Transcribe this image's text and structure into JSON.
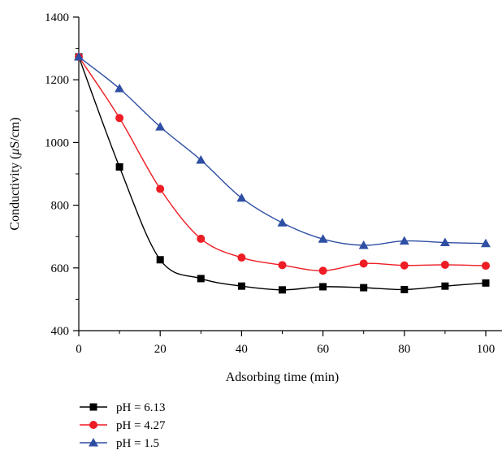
{
  "chart_data": {
    "type": "line",
    "xlabel": "Adsorbing time (min)",
    "ylabel_prefix": "Conductivity (",
    "ylabel_mu": "μ",
    "ylabel_suffix": "S/cm)",
    "xlim": [
      0,
      100
    ],
    "ylim": [
      400,
      1400
    ],
    "x_ticks": [
      0,
      20,
      40,
      60,
      80,
      100
    ],
    "y_ticks": [
      400,
      600,
      800,
      1000,
      1200,
      1400
    ],
    "grid": false,
    "legend_position": "bottom-left",
    "x": [
      0,
      10,
      20,
      30,
      40,
      50,
      60,
      70,
      80,
      90,
      100
    ],
    "series": [
      {
        "name": "pH = 6.13",
        "marker": "square",
        "color": "#000000",
        "values": [
          1273,
          922,
          626,
          566,
          542,
          530,
          540,
          537,
          531,
          542,
          552
        ]
      },
      {
        "name": "pH = 4.27",
        "marker": "circle",
        "color": "#ee1c24",
        "values": [
          1273,
          1078,
          852,
          693,
          633,
          609,
          591,
          614,
          608,
          610,
          607
        ]
      },
      {
        "name": "pH = 1.5",
        "marker": "triangle",
        "color": "#2e4fa3",
        "values": [
          1273,
          1172,
          1050,
          944,
          823,
          744,
          692,
          672,
          686,
          681,
          678
        ]
      }
    ]
  }
}
